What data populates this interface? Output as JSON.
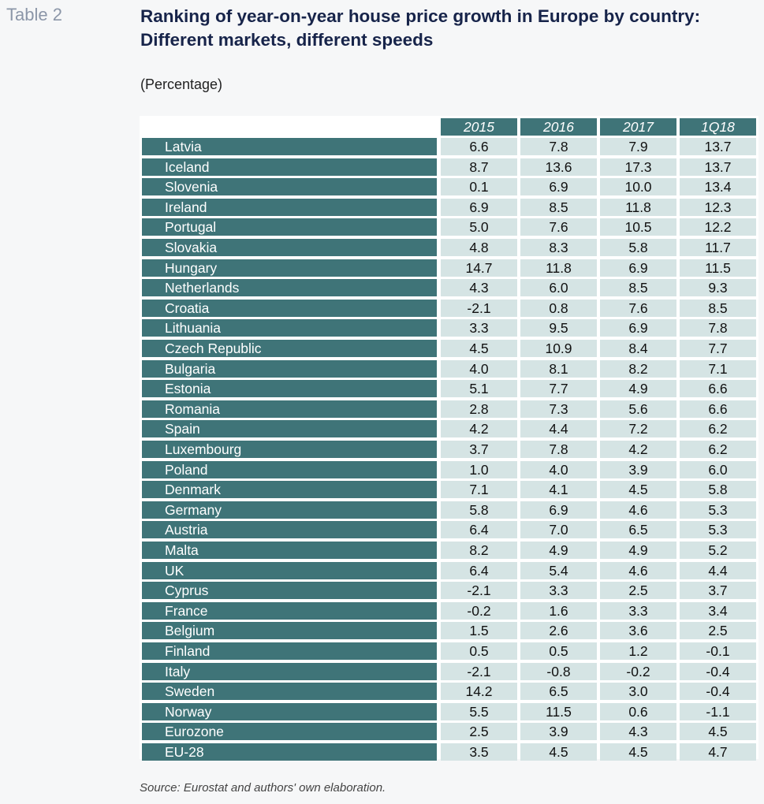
{
  "table_label": "Table 2",
  "title": "Ranking of year-on-year house price growth in Europe by country: Different markets, different speeds",
  "subtitle": "(Percentage)",
  "columns": [
    "2015",
    "2016",
    "2017",
    "1Q18"
  ],
  "rows": [
    {
      "country": "Latvia",
      "values": [
        "6.6",
        "7.8",
        "7.9",
        "13.7"
      ]
    },
    {
      "country": "Iceland",
      "values": [
        "8.7",
        "13.6",
        "17.3",
        "13.7"
      ]
    },
    {
      "country": "Slovenia",
      "values": [
        "0.1",
        "6.9",
        "10.0",
        "13.4"
      ]
    },
    {
      "country": "Ireland",
      "values": [
        "6.9",
        "8.5",
        "11.8",
        "12.3"
      ]
    },
    {
      "country": "Portugal",
      "values": [
        "5.0",
        "7.6",
        "10.5",
        "12.2"
      ]
    },
    {
      "country": "Slovakia",
      "values": [
        "4.8",
        "8.3",
        "5.8",
        "11.7"
      ]
    },
    {
      "country": "Hungary",
      "values": [
        "14.7",
        "11.8",
        "6.9",
        "11.5"
      ]
    },
    {
      "country": "Netherlands",
      "values": [
        "4.3",
        "6.0",
        "8.5",
        "9.3"
      ]
    },
    {
      "country": "Croatia",
      "values": [
        "-2.1",
        "0.8",
        "7.6",
        "8.5"
      ]
    },
    {
      "country": "Lithuania",
      "values": [
        "3.3",
        "9.5",
        "6.9",
        "7.8"
      ]
    },
    {
      "country": "Czech Republic",
      "values": [
        "4.5",
        "10.9",
        "8.4",
        "7.7"
      ]
    },
    {
      "country": "Bulgaria",
      "values": [
        "4.0",
        "8.1",
        "8.2",
        "7.1"
      ]
    },
    {
      "country": "Estonia",
      "values": [
        "5.1",
        "7.7",
        "4.9",
        "6.6"
      ]
    },
    {
      "country": "Romania",
      "values": [
        "2.8",
        "7.3",
        "5.6",
        "6.6"
      ]
    },
    {
      "country": "Spain",
      "values": [
        "4.2",
        "4.4",
        "7.2",
        "6.2"
      ]
    },
    {
      "country": "Luxembourg",
      "values": [
        "3.7",
        "7.8",
        "4.2",
        "6.2"
      ]
    },
    {
      "country": "Poland",
      "values": [
        "1.0",
        "4.0",
        "3.9",
        "6.0"
      ]
    },
    {
      "country": "Denmark",
      "values": [
        "7.1",
        "4.1",
        "4.5",
        "5.8"
      ]
    },
    {
      "country": "Germany",
      "values": [
        "5.8",
        "6.9",
        "4.6",
        "5.3"
      ]
    },
    {
      "country": "Austria",
      "values": [
        "6.4",
        "7.0",
        "6.5",
        "5.3"
      ]
    },
    {
      "country": "Malta",
      "values": [
        "8.2",
        "4.9",
        "4.9",
        "5.2"
      ]
    },
    {
      "country": "UK",
      "values": [
        "6.4",
        "5.4",
        "4.6",
        "4.4"
      ]
    },
    {
      "country": "Cyprus",
      "values": [
        "-2.1",
        "3.3",
        "2.5",
        "3.7"
      ]
    },
    {
      "country": "France",
      "values": [
        "-0.2",
        "1.6",
        "3.3",
        "3.4"
      ]
    },
    {
      "country": "Belgium",
      "values": [
        "1.5",
        "2.6",
        "3.6",
        "2.5"
      ]
    },
    {
      "country": "Finland",
      "values": [
        "0.5",
        "0.5",
        "1.2",
        "-0.1"
      ]
    },
    {
      "country": "Italy",
      "values": [
        "-2.1",
        "-0.8",
        "-0.2",
        "-0.4"
      ]
    },
    {
      "country": "Sweden",
      "values": [
        "14.2",
        "6.5",
        "3.0",
        "-0.4"
      ]
    },
    {
      "country": "Norway",
      "values": [
        "5.5",
        "11.5",
        "0.6",
        "-1.1"
      ]
    },
    {
      "country": "Eurozone",
      "values": [
        "2.5",
        "3.9",
        "4.3",
        "4.5"
      ]
    },
    {
      "country": "EU-28",
      "values": [
        "3.5",
        "4.5",
        "4.5",
        "4.7"
      ]
    }
  ],
  "source": "Source: Eurostat and authors' own elaboration.",
  "colors": {
    "header_bg": "#3f7478",
    "value_bg": "#d5e4e4",
    "title": "#17244a"
  }
}
